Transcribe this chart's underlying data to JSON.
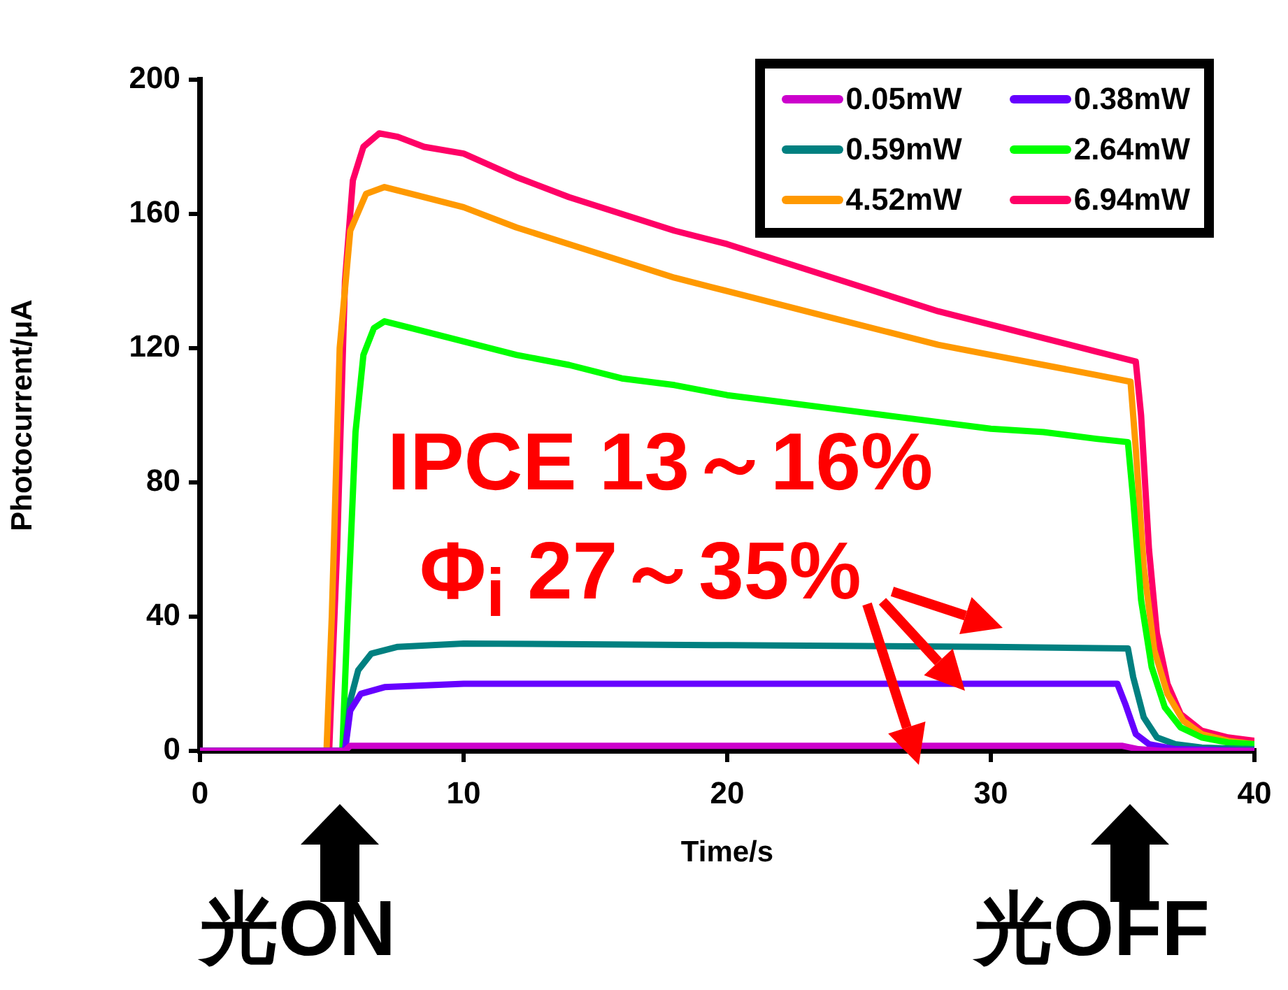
{
  "chart_data": {
    "type": "line",
    "xlabel": "Time/s",
    "ylabel": "Photocurrent/μA",
    "xlim": [
      0,
      40
    ],
    "xticks": [
      0,
      10,
      20,
      30,
      40
    ],
    "ylim": [
      0,
      200
    ],
    "yticks": [
      0,
      40,
      80,
      120,
      160,
      200
    ],
    "grid": false,
    "legend": "top right",
    "marker": "none",
    "line_style": "solid",
    "annotations": [
      "IPCE 13～16%",
      "Φ$_{i}$ 27～35%",
      "光ON",
      "光OFF"
    ],
    "series": [
      {
        "name": "0.05mW",
        "color": "#cc00cc",
        "x": [
          0,
          5.5,
          5.7,
          35,
          35.6,
          36.5,
          40
        ],
        "values": [
          0,
          0,
          1.5,
          1.5,
          0.5,
          0,
          0
        ]
      },
      {
        "name": "0.38mW",
        "color": "#6600ff",
        "x": [
          0,
          5.5,
          5.7,
          6.1,
          7,
          10,
          20,
          30,
          34.8,
          35.1,
          35.5,
          36,
          37,
          40
        ],
        "values": [
          0,
          0,
          12,
          17,
          19,
          20,
          20,
          20,
          20,
          14,
          5,
          2,
          0.5,
          0
        ]
      },
      {
        "name": "0.59mW",
        "color": "#008080",
        "x": [
          0,
          5.5,
          5.7,
          6,
          6.5,
          7.5,
          10,
          20,
          30,
          35.2,
          35.4,
          35.8,
          36.3,
          37,
          38,
          40
        ],
        "values": [
          0,
          0,
          15,
          24,
          29,
          31,
          32,
          31.5,
          31,
          30.5,
          22,
          10,
          4,
          2,
          1,
          0.5
        ]
      },
      {
        "name": "2.64mW",
        "color": "#00ff00",
        "x": [
          0,
          5.4,
          5.6,
          5.9,
          6.2,
          6.6,
          7,
          8,
          10,
          12,
          14,
          16,
          18,
          20,
          22,
          24,
          26,
          28,
          30,
          32,
          34,
          35.2,
          35.4,
          35.7,
          36.1,
          36.6,
          37.2,
          38,
          39,
          40
        ],
        "values": [
          0,
          0,
          40,
          95,
          118,
          126,
          128,
          126,
          122,
          118,
          115,
          111,
          109,
          106,
          104,
          102,
          100,
          98,
          96,
          95,
          93,
          92,
          75,
          45,
          25,
          13,
          7,
          4,
          2.5,
          2
        ]
      },
      {
        "name": "4.52mW",
        "color": "#ff9900",
        "x": [
          0,
          4.8,
          5,
          5.3,
          5.7,
          6.3,
          7,
          8,
          10,
          12,
          14,
          16,
          18,
          20,
          22,
          24,
          26,
          28,
          30,
          32,
          34,
          35.3,
          35.5,
          35.8,
          36.2,
          36.7,
          37.3,
          38,
          39,
          40
        ],
        "values": [
          0,
          0,
          40,
          120,
          155,
          166,
          168,
          166,
          162,
          156,
          151,
          146,
          141,
          137,
          133,
          129,
          125,
          121,
          118,
          115,
          112,
          110,
          90,
          55,
          30,
          17,
          9,
          5,
          3,
          2
        ]
      },
      {
        "name": "6.94mW",
        "color": "#ff0066",
        "x": [
          0,
          4.9,
          5.2,
          5.5,
          5.8,
          6.2,
          6.8,
          7.5,
          8.5,
          10,
          12,
          14,
          16,
          18,
          20,
          22,
          24,
          26,
          28,
          30,
          32,
          34,
          35.5,
          35.7,
          36,
          36.3,
          36.7,
          37.2,
          38,
          39,
          40
        ],
        "values": [
          0,
          0,
          60,
          140,
          170,
          180,
          184,
          183,
          180,
          178,
          171,
          165,
          160,
          155,
          151,
          146,
          141,
          136,
          131,
          127,
          123,
          119,
          116,
          100,
          60,
          35,
          20,
          11,
          6,
          4,
          3
        ]
      }
    ]
  }
}
